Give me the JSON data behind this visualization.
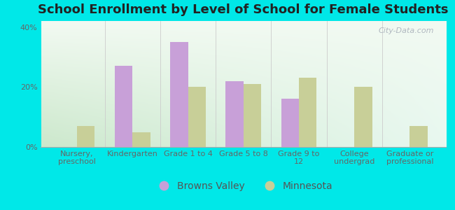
{
  "title": "School Enrollment by Level of School for Female Students",
  "categories": [
    "Nursery,\npreschool",
    "Kindergarten",
    "Grade 1 to 4",
    "Grade 5 to 8",
    "Grade 9 to\n12",
    "College\nundergrad",
    "Graduate or\nprofessional"
  ],
  "browns_valley": [
    0,
    27,
    35,
    22,
    16,
    0,
    0
  ],
  "minnesota": [
    7,
    5,
    20,
    21,
    23,
    20,
    7
  ],
  "bv_color": "#c8a0d8",
  "mn_color": "#c8cf98",
  "bg_color": "#00e8e8",
  "ylim": [
    0,
    42
  ],
  "yticks": [
    0,
    20,
    40
  ],
  "ytick_labels": [
    "0%",
    "20%",
    "40%"
  ],
  "bar_width": 0.32,
  "legend_labels": [
    "Browns Valley",
    "Minnesota"
  ],
  "title_fontsize": 13,
  "tick_fontsize": 8,
  "legend_fontsize": 10,
  "watermark": "City-Data.com"
}
